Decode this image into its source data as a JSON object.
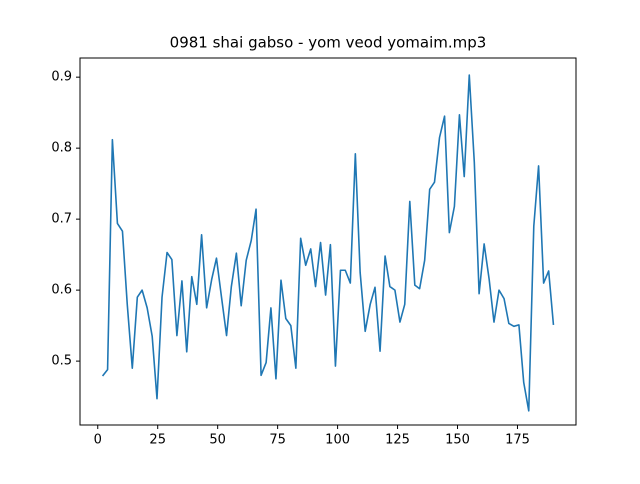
{
  "chart_data": {
    "type": "line",
    "title": "0981 shai gabso - yom veod yomaim.mp3",
    "x": [
      2.0,
      4.1,
      6.1,
      8.2,
      10.3,
      12.3,
      14.4,
      16.5,
      18.5,
      20.6,
      22.7,
      24.7,
      26.8,
      28.9,
      30.9,
      33.0,
      35.1,
      37.1,
      39.2,
      41.3,
      43.3,
      45.4,
      47.5,
      49.5,
      51.6,
      53.7,
      55.7,
      57.8,
      59.8,
      61.9,
      64.0,
      66.0,
      68.1,
      70.2,
      72.2,
      74.3,
      76.4,
      78.4,
      80.5,
      82.6,
      84.6,
      86.7,
      88.8,
      90.8,
      92.9,
      95.0,
      97.0,
      99.1,
      101.2,
      103.2,
      105.3,
      107.4,
      109.4,
      111.5,
      113.6,
      115.6,
      117.7,
      119.8,
      121.8,
      123.9,
      126.0,
      128.0,
      130.1,
      132.2,
      134.2,
      136.3,
      138.4,
      140.4,
      142.5,
      144.6,
      146.6,
      148.7,
      150.8,
      152.8,
      154.9,
      157.0,
      159.0,
      161.1,
      163.2,
      165.2,
      167.3,
      169.4,
      171.4,
      173.5,
      175.6,
      177.6,
      179.7,
      181.8,
      183.8,
      185.9,
      188.0,
      190.0
    ],
    "series": [
      {
        "color": "#1f77b4",
        "values": [
          0.479,
          0.488,
          0.812,
          0.694,
          0.683,
          0.58,
          0.49,
          0.59,
          0.6,
          0.575,
          0.535,
          0.447,
          0.59,
          0.653,
          0.643,
          0.536,
          0.613,
          0.513,
          0.619,
          0.58,
          0.678,
          0.575,
          0.615,
          0.645,
          0.59,
          0.536,
          0.605,
          0.652,
          0.578,
          0.642,
          0.67,
          0.714,
          0.48,
          0.498,
          0.575,
          0.475,
          0.614,
          0.56,
          0.55,
          0.49,
          0.673,
          0.635,
          0.658,
          0.605,
          0.667,
          0.593,
          0.664,
          0.493,
          0.628,
          0.628,
          0.61,
          0.792,
          0.625,
          0.542,
          0.58,
          0.604,
          0.514,
          0.648,
          0.605,
          0.6,
          0.555,
          0.58,
          0.725,
          0.607,
          0.602,
          0.642,
          0.742,
          0.752,
          0.815,
          0.845,
          0.681,
          0.718,
          0.847,
          0.76,
          0.903,
          0.78,
          0.595,
          0.665,
          0.615,
          0.555,
          0.6,
          0.588,
          0.553,
          0.549,
          0.551,
          0.47,
          0.43,
          0.69,
          0.775,
          0.61,
          0.627,
          0.551
        ]
      }
    ],
    "xlim": [
      -7.4,
      199.4
    ],
    "xticks": [
      0,
      25,
      50,
      75,
      100,
      125,
      150,
      175
    ],
    "ylim": [
      0.41,
      0.927
    ],
    "yticks": [
      0.5,
      0.6,
      0.7,
      0.8,
      0.9
    ]
  }
}
